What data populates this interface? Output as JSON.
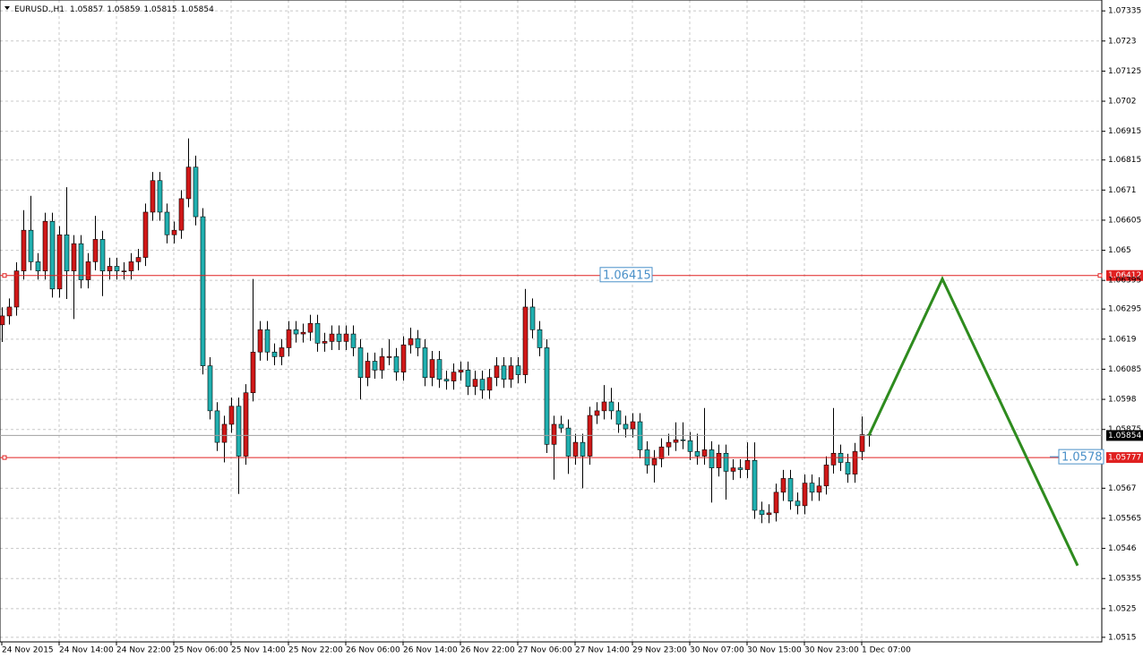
{
  "chart_data": {
    "type": "candlestick",
    "symbol": "EURUSD.,H1",
    "ylim": [
      1.05134,
      1.07373
    ],
    "yticks": [
      1.07335,
      1.0723,
      1.07125,
      1.0702,
      1.06915,
      1.06815,
      1.0671,
      1.06605,
      1.065,
      1.06395,
      1.06295,
      1.0619,
      1.06085,
      1.0598,
      1.05875,
      1.0567,
      1.05565,
      1.0546,
      1.05355,
      1.0525,
      1.0515
    ],
    "grid": true,
    "up_color": "#d01818",
    "down_color": "#20b0b0",
    "categories": [
      "24 Nov 2015",
      null,
      null,
      null,
      null,
      null,
      null,
      null,
      "24 Nov 14:00",
      null,
      null,
      null,
      null,
      null,
      null,
      null,
      "24 Nov 22:00",
      null,
      null,
      null,
      null,
      null,
      null,
      null,
      "25 Nov 06:00",
      null,
      null,
      null,
      null,
      null,
      null,
      null,
      "25 Nov 14:00",
      null,
      null,
      null,
      null,
      null,
      null,
      null,
      "25 Nov 22:00",
      null,
      null,
      null,
      null,
      null,
      null,
      null,
      "26 Nov 06:00",
      null,
      null,
      null,
      null,
      null,
      null,
      null,
      "26 Nov 14:00",
      null,
      null,
      null,
      null,
      null,
      null,
      null,
      "26 Nov 22:00",
      null,
      null,
      null,
      null,
      null,
      null,
      null,
      "27 Nov 06:00",
      null,
      null,
      null,
      null,
      null,
      null,
      null,
      "27 Nov 14:00",
      null,
      null,
      null,
      null,
      null,
      null,
      null,
      "29 Nov 23:00",
      null,
      null,
      null,
      null,
      null,
      null,
      null,
      "30 Nov 07:00",
      null,
      null,
      null,
      null,
      null,
      null,
      null,
      "30 Nov 15:00",
      null,
      null,
      null,
      null,
      null,
      null,
      null,
      "30 Nov 23:00",
      null,
      null,
      null,
      null,
      null,
      null,
      null,
      "1 Dec 07:00",
      null
    ],
    "open": [
      1.0624,
      1.06271,
      1.06302,
      1.06428,
      1.0657,
      1.0646,
      1.06428,
      1.06601,
      1.06365,
      1.06554,
      1.06428,
      1.06523,
      1.06397,
      1.0646,
      1.06538,
      1.06428,
      1.06444,
      1.06428,
      1.06428,
      1.0646,
      1.06475,
      1.06633,
      1.06743,
      1.06633,
      1.06554,
      1.0657,
      1.0668,
      1.0679,
      1.06617,
      1.06097,
      1.0594,
      1.0583,
      1.05893,
      1.05956,
      1.05782,
      1.06003,
      1.06145,
      1.06223,
      1.06145,
      1.06129,
      1.0616,
      1.06223,
      1.06208,
      1.06214,
      1.06245,
      1.06176,
      1.06182,
      1.06208,
      1.06182,
      1.06208,
      1.0616,
      1.06056,
      1.06113,
      1.06082,
      1.06129,
      1.06129,
      1.06075,
      1.0617,
      1.06192,
      1.0616,
      1.06056,
      1.06119,
      1.0605,
      1.06044,
      1.06075,
      1.06082,
      1.06025,
      1.0605,
      1.06012,
      1.06056,
      1.06097,
      1.0605,
      1.06097,
      1.06066,
      1.06302,
      1.06223,
      1.0616,
      1.05823,
      1.05893,
      1.0588,
      1.05782,
      1.0583,
      1.05782,
      1.05924,
      1.0594,
      1.05971,
      1.0594,
      1.05893,
      1.05877,
      1.05902,
      1.05804,
      1.05751,
      1.05773,
      1.05814,
      1.0583,
      1.05839,
      1.05836,
      1.05798,
      1.05782,
      1.05804,
      1.05741,
      1.05792,
      1.05729,
      1.05741,
      1.05735,
      1.05767,
      1.05593,
      1.05578,
      1.05584,
      1.05656,
      1.05704,
      1.05625,
      1.05609,
      1.05688,
      1.05656,
      1.05678,
      1.05751,
      1.05792,
      1.0576,
      1.05719,
      1.05798,
      1.05857
    ],
    "high": [
      1.06301,
      1.06332,
      1.06458,
      1.0664,
      1.0669,
      1.0649,
      1.06631,
      1.06631,
      1.06584,
      1.0672,
      1.06553,
      1.06553,
      1.0649,
      1.0662,
      1.06568,
      1.06474,
      1.06474,
      1.06458,
      1.0649,
      1.06505,
      1.06663,
      1.06773,
      1.06773,
      1.06663,
      1.066,
      1.0671,
      1.0689,
      1.0683,
      1.06647,
      1.06127,
      1.0597,
      1.05923,
      1.05986,
      1.05986,
      1.06033,
      1.064,
      1.06253,
      1.06253,
      1.06175,
      1.0619,
      1.06253,
      1.06253,
      1.06244,
      1.06275,
      1.06275,
      1.06212,
      1.06238,
      1.06238,
      1.06238,
      1.06238,
      1.0619,
      1.06143,
      1.06143,
      1.06159,
      1.0619,
      1.06159,
      1.062,
      1.0623,
      1.06222,
      1.0619,
      1.06149,
      1.06149,
      1.0608,
      1.06105,
      1.06112,
      1.06112,
      1.0608,
      1.0608,
      1.06086,
      1.06127,
      1.06127,
      1.06127,
      1.06127,
      1.06365,
      1.06332,
      1.06253,
      1.0619,
      1.05923,
      1.05923,
      1.0591,
      1.0586,
      1.0586,
      1.05954,
      1.0597,
      1.0603,
      1.0602,
      1.0597,
      1.05923,
      1.05932,
      1.05932,
      1.05834,
      1.05803,
      1.05844,
      1.0586,
      1.059,
      1.059,
      1.05866,
      1.0586,
      1.0595,
      1.05834,
      1.05822,
      1.05822,
      1.05771,
      1.05771,
      1.0583,
      1.0583,
      1.05623,
      1.05614,
      1.05686,
      1.05734,
      1.05734,
      1.05655,
      1.05718,
      1.05718,
      1.05708,
      1.05781,
      1.0595,
      1.05822,
      1.0579,
      1.05828,
      1.0592,
      1.05859
    ],
    "low": [
      1.0618,
      1.06241,
      1.06272,
      1.06398,
      1.0643,
      1.06398,
      1.06398,
      1.06335,
      1.06335,
      1.0633,
      1.0626,
      1.06367,
      1.06367,
      1.0643,
      1.0634,
      1.06398,
      1.06398,
      1.06398,
      1.06398,
      1.0643,
      1.06445,
      1.06603,
      1.06603,
      1.06524,
      1.06524,
      1.0654,
      1.0665,
      1.06587,
      1.06067,
      1.0591,
      1.058,
      1.0576,
      1.05863,
      1.0565,
      1.05752,
      1.05973,
      1.06115,
      1.06115,
      1.06099,
      1.06099,
      1.0613,
      1.06178,
      1.06178,
      1.06184,
      1.06146,
      1.06146,
      1.06152,
      1.06152,
      1.06152,
      1.0613,
      1.0598,
      1.06026,
      1.06052,
      1.06052,
      1.06099,
      1.06045,
      1.06045,
      1.0614,
      1.0613,
      1.06026,
      1.06026,
      1.0602,
      1.06014,
      1.06014,
      1.06045,
      1.05995,
      1.05995,
      1.05982,
      1.05982,
      1.06026,
      1.0602,
      1.0602,
      1.06036,
      1.06036,
      1.06193,
      1.0613,
      1.05793,
      1.057,
      1.05863,
      1.0572,
      1.05752,
      1.0567,
      1.05752,
      1.05894,
      1.0591,
      1.0591,
      1.05863,
      1.05847,
      1.05847,
      1.05774,
      1.05721,
      1.0569,
      1.05743,
      1.05784,
      1.058,
      1.05806,
      1.05768,
      1.05752,
      1.05752,
      1.0562,
      1.05711,
      1.0563,
      1.05699,
      1.05705,
      1.05705,
      1.05563,
      1.05548,
      1.05548,
      1.05554,
      1.05626,
      1.05595,
      1.05579,
      1.05579,
      1.05626,
      1.05626,
      1.05648,
      1.05721,
      1.0573,
      1.05689,
      1.05689,
      1.05768,
      1.05815
    ],
    "close": [
      1.06271,
      1.06302,
      1.06428,
      1.0657,
      1.0646,
      1.06428,
      1.06601,
      1.06365,
      1.06554,
      1.06428,
      1.06523,
      1.06397,
      1.0646,
      1.06538,
      1.06428,
      1.06444,
      1.06428,
      1.06428,
      1.0646,
      1.06475,
      1.06633,
      1.06743,
      1.06633,
      1.06554,
      1.0657,
      1.0668,
      1.0679,
      1.06617,
      1.06097,
      1.0594,
      1.0583,
      1.05893,
      1.05956,
      1.05782,
      1.06003,
      1.06145,
      1.06223,
      1.06145,
      1.06129,
      1.0616,
      1.06223,
      1.06208,
      1.06214,
      1.06245,
      1.06176,
      1.06182,
      1.06208,
      1.06182,
      1.06208,
      1.0616,
      1.06056,
      1.06113,
      1.06082,
      1.06129,
      1.06129,
      1.06075,
      1.0617,
      1.06192,
      1.0616,
      1.06056,
      1.06119,
      1.0605,
      1.06044,
      1.06075,
      1.06082,
      1.06025,
      1.0605,
      1.06012,
      1.06056,
      1.06097,
      1.0605,
      1.06097,
      1.06066,
      1.06302,
      1.06223,
      1.0616,
      1.05823,
      1.05893,
      1.0588,
      1.05782,
      1.0583,
      1.05782,
      1.05924,
      1.0594,
      1.05971,
      1.0594,
      1.05893,
      1.05877,
      1.05902,
      1.05804,
      1.05751,
      1.05773,
      1.05814,
      1.0583,
      1.05839,
      1.05836,
      1.05798,
      1.05782,
      1.05804,
      1.05741,
      1.05792,
      1.05729,
      1.05741,
      1.05735,
      1.05767,
      1.05593,
      1.05578,
      1.05584,
      1.05656,
      1.05704,
      1.05625,
      1.05609,
      1.05688,
      1.05656,
      1.05678,
      1.05751,
      1.05792,
      1.0576,
      1.05719,
      1.05798,
      1.05857,
      1.05854
    ],
    "hlines": [
      1.06412,
      1.05777
    ],
    "hline_color": "#e02020",
    "text_labels": [
      1.06415,
      1.0578
    ],
    "text_label_color": "#4a90c8",
    "zigzag": [
      1.05854,
      1.064,
      1.054
    ],
    "zigzag_color": "#2e8b1e"
  }
}
